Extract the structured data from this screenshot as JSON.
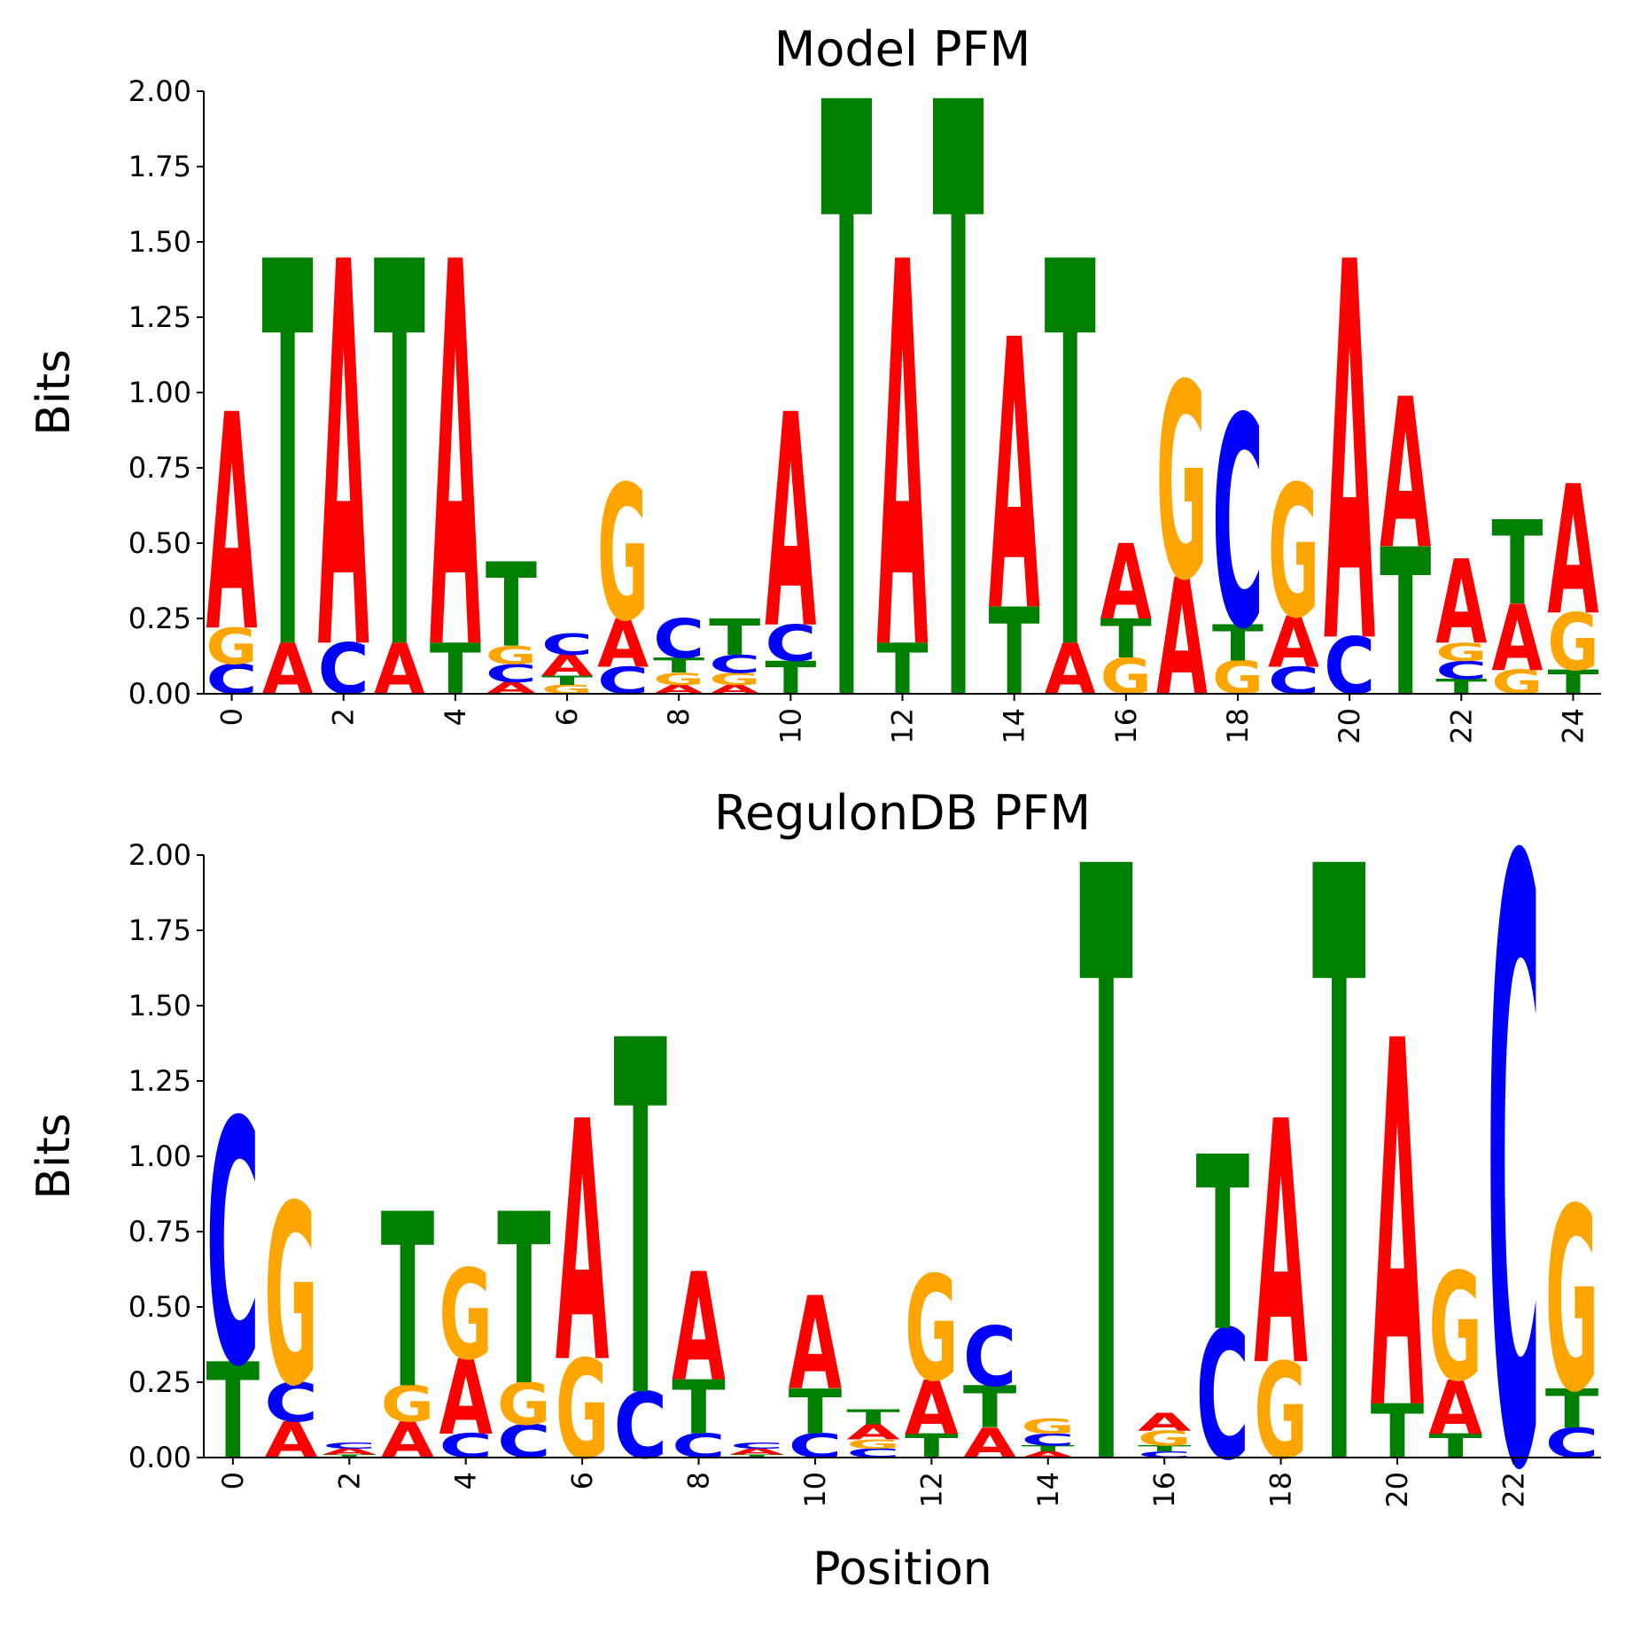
{
  "chart_data": [
    {
      "type": "logo",
      "title": "Model PFM",
      "ylabel": "Bits",
      "x": [
        0,
        1,
        2,
        3,
        4,
        5,
        6,
        7,
        8,
        9,
        10,
        11,
        12,
        13,
        14,
        15,
        16,
        17,
        18,
        19,
        20,
        21,
        22,
        23,
        24
      ],
      "series": [
        {
          "name": "A",
          "color": "#ff0000",
          "values": [
            0.72,
            0.17,
            1.28,
            0.17,
            1.28,
            0.04,
            0.07,
            0.16,
            0.03,
            0.03,
            0.71,
            0,
            1.28,
            0,
            0.9,
            0.17,
            0.25,
            0.39,
            0,
            0.17,
            1.26,
            0.5,
            0.28,
            0.22,
            0.43
          ]
        },
        {
          "name": "C",
          "color": "#0000ff",
          "values": [
            0.1,
            0,
            0.17,
            0,
            0,
            0.06,
            0.07,
            0.09,
            0.13,
            0.06,
            0.12,
            0,
            0,
            0,
            0,
            0,
            0,
            0,
            0.7,
            0.09,
            0.19,
            0,
            0.06,
            0,
            0
          ]
        },
        {
          "name": "G",
          "color": "#ffa500",
          "values": [
            0.12,
            0,
            0,
            0,
            0,
            0.06,
            0.03,
            0.45,
            0.04,
            0.04,
            0,
            0,
            0,
            0,
            0,
            0,
            0.12,
            0.65,
            0.11,
            0.44,
            0,
            0,
            0.06,
            0.08,
            0.19
          ]
        },
        {
          "name": "T",
          "color": "#008000",
          "values": [
            0,
            1.28,
            0,
            1.28,
            0.17,
            0.28,
            0.03,
            0,
            0.05,
            0.12,
            0.11,
            1.98,
            0.17,
            1.98,
            0.29,
            1.28,
            0.13,
            0,
            0.12,
            0,
            0,
            0.49,
            0.05,
            0.28,
            0.08
          ]
        }
      ],
      "xlim": [
        -0.5,
        24.5
      ],
      "xticks": [
        0,
        2,
        4,
        6,
        8,
        10,
        12,
        14,
        16,
        18,
        20,
        22,
        24
      ],
      "ylim": [
        0,
        2
      ],
      "yticks": [
        {
          "value": 0,
          "label": "0.00"
        },
        {
          "value": 0.25,
          "label": "0.25"
        },
        {
          "value": 0.5,
          "label": "0.50"
        },
        {
          "value": 0.75,
          "label": "0.75"
        },
        {
          "value": 1,
          "label": "1.00"
        },
        {
          "value": 1.25,
          "label": "1.25"
        },
        {
          "value": 1.5,
          "label": "1.50"
        },
        {
          "value": 1.75,
          "label": "1.75"
        },
        {
          "value": 2,
          "label": "2.00"
        }
      ]
    },
    {
      "type": "logo",
      "title": "RegulonDB PFM",
      "ylabel": "Bits",
      "xlabel": "Position",
      "x": [
        0,
        1,
        2,
        3,
        4,
        5,
        6,
        7,
        8,
        9,
        10,
        11,
        12,
        13,
        14,
        15,
        16,
        17,
        18,
        19,
        20,
        21,
        22,
        23
      ],
      "series": [
        {
          "name": "A",
          "color": "#ff0000",
          "values": [
            0,
            0.12,
            0.02,
            0.12,
            0.25,
            0,
            0.8,
            0,
            0.36,
            0.02,
            0.31,
            0.05,
            0.18,
            0.1,
            0.02,
            0,
            0.06,
            0,
            0.81,
            0,
            1.22,
            0.18,
            0,
            0
          ]
        },
        {
          "name": "C",
          "color": "#0000ff",
          "values": [
            0.81,
            0.13,
            0.02,
            0,
            0.08,
            0.11,
            0,
            0.22,
            0.08,
            0.02,
            0.08,
            0.03,
            0,
            0.2,
            0.04,
            0,
            0.02,
            0.43,
            0,
            0,
            0,
            0,
            2.0,
            0.1
          ]
        },
        {
          "name": "G",
          "color": "#ffa500",
          "values": [
            0,
            0.6,
            0,
            0.12,
            0.3,
            0.14,
            0.33,
            0,
            0,
            0,
            0,
            0.03,
            0.35,
            0,
            0.05,
            0,
            0.05,
            0,
            0.32,
            0,
            0,
            0.36,
            0,
            0.61
          ]
        },
        {
          "name": "T",
          "color": "#008000",
          "values": [
            0.32,
            0,
            0.01,
            0.58,
            0,
            0.57,
            0,
            1.18,
            0.18,
            0.01,
            0.15,
            0.05,
            0.08,
            0.14,
            0.02,
            1.98,
            0.02,
            0.58,
            0,
            1.98,
            0.18,
            0.08,
            0,
            0.13
          ]
        }
      ],
      "xlim": [
        -0.5,
        23.5
      ],
      "xticks": [
        0,
        2,
        4,
        6,
        8,
        10,
        12,
        14,
        16,
        18,
        20,
        22
      ],
      "ylim": [
        0,
        2
      ],
      "yticks": [
        {
          "value": 0,
          "label": "0.00"
        },
        {
          "value": 0.25,
          "label": "0.25"
        },
        {
          "value": 0.5,
          "label": "0.50"
        },
        {
          "value": 0.75,
          "label": "0.75"
        },
        {
          "value": 1,
          "label": "1.00"
        },
        {
          "value": 1.25,
          "label": "1.25"
        },
        {
          "value": 1.5,
          "label": "1.50"
        },
        {
          "value": 1.75,
          "label": "1.75"
        },
        {
          "value": 2,
          "label": "2.00"
        }
      ]
    }
  ]
}
